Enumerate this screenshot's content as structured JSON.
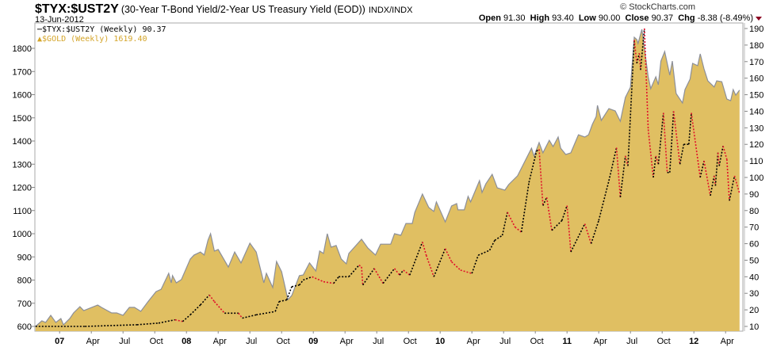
{
  "header": {
    "symbol": "$TYX:$UST2Y",
    "description": "(30-Year T-Bond Yield/2-Year US Treasury Yield (EOD))",
    "exchange": "INDX/INDX",
    "date": "13-Jun-2012",
    "brand": "© StockCharts.com",
    "open_label": "Open",
    "open": "91.30",
    "high_label": "High",
    "high": "93.40",
    "low_label": "Low",
    "low": "90.00",
    "close_label": "Close",
    "close": "90.37",
    "chg_label": "Chg",
    "chg": "-8.38 (-8.49%)"
  },
  "legend": {
    "ratio": "$TYX:$UST2Y (Weekly) 90.37",
    "gold": "$GOLD (Weekly) 1619.40"
  },
  "colors": {
    "gold_fill": "#e0bf62",
    "gold_line": "#8c8f98",
    "ratio_up": "#000000",
    "ratio_down": "#e0102a"
  },
  "chart_data": {
    "type": "line",
    "title": "$TYX:$UST2Y",
    "xlim": [
      2006.805,
      2012.355
    ],
    "left_axis": {
      "label": "$GOLD",
      "ylim": [
        580,
        1900
      ],
      "ticks": [
        600,
        700,
        800,
        900,
        1000,
        1100,
        1200,
        1300,
        1400,
        1500,
        1600,
        1700,
        1800
      ]
    },
    "right_axis": {
      "label": "$TYX:$UST2Y",
      "ylim": [
        5,
        193
      ],
      "ticks": [
        10,
        20,
        30,
        40,
        50,
        60,
        70,
        80,
        90,
        100,
        110,
        120,
        130,
        140,
        150,
        160,
        170,
        180,
        190
      ]
    },
    "x_ticks": [
      {
        "t": 2007.0,
        "label": "07",
        "major": true
      },
      {
        "t": 2007.25,
        "label": "Apr"
      },
      {
        "t": 2007.5,
        "label": "Jul"
      },
      {
        "t": 2007.75,
        "label": "Oct"
      },
      {
        "t": 2008.0,
        "label": "08",
        "major": true
      },
      {
        "t": 2008.25,
        "label": "Apr"
      },
      {
        "t": 2008.5,
        "label": "Jul"
      },
      {
        "t": 2008.75,
        "label": "Oct"
      },
      {
        "t": 2009.0,
        "label": "09",
        "major": true
      },
      {
        "t": 2009.25,
        "label": "Apr"
      },
      {
        "t": 2009.5,
        "label": "Jul"
      },
      {
        "t": 2009.75,
        "label": "Oct"
      },
      {
        "t": 2010.0,
        "label": "10",
        "major": true
      },
      {
        "t": 2010.25,
        "label": "Apr"
      },
      {
        "t": 2010.5,
        "label": "Jul"
      },
      {
        "t": 2010.75,
        "label": "Oct"
      },
      {
        "t": 2011.0,
        "label": "11",
        "major": true
      },
      {
        "t": 2011.25,
        "label": "Apr"
      },
      {
        "t": 2011.5,
        "label": "Jul"
      },
      {
        "t": 2011.75,
        "label": "Oct"
      },
      {
        "t": 2012.0,
        "label": "12",
        "major": true
      },
      {
        "t": 2012.25,
        "label": "Apr"
      }
    ],
    "series": [
      {
        "name": "$GOLD (Weekly)",
        "type": "area",
        "axis": "left",
        "points": [
          [
            2006.81,
            600
          ],
          [
            2006.86,
            624
          ],
          [
            2006.89,
            617
          ],
          [
            2006.93,
            648
          ],
          [
            2006.97,
            617
          ],
          [
            2007.01,
            634
          ],
          [
            2007.03,
            607
          ],
          [
            2007.08,
            634
          ],
          [
            2007.11,
            658
          ],
          [
            2007.16,
            685
          ],
          [
            2007.19,
            668
          ],
          [
            2007.3,
            692
          ],
          [
            2007.33,
            682
          ],
          [
            2007.41,
            658
          ],
          [
            2007.45,
            658
          ],
          [
            2007.5,
            648
          ],
          [
            2007.55,
            682
          ],
          [
            2007.59,
            682
          ],
          [
            2007.64,
            665
          ],
          [
            2007.7,
            709
          ],
          [
            2007.76,
            750
          ],
          [
            2007.8,
            760
          ],
          [
            2007.86,
            829
          ],
          [
            2007.88,
            788
          ],
          [
            2007.89,
            819
          ],
          [
            2007.92,
            788
          ],
          [
            2007.96,
            802
          ],
          [
            2008.03,
            891
          ],
          [
            2008.06,
            908
          ],
          [
            2008.11,
            921
          ],
          [
            2008.14,
            908
          ],
          [
            2008.17,
            973
          ],
          [
            2008.19,
            1000
          ],
          [
            2008.22,
            925
          ],
          [
            2008.25,
            932
          ],
          [
            2008.33,
            856
          ],
          [
            2008.38,
            921
          ],
          [
            2008.43,
            874
          ],
          [
            2008.5,
            959
          ],
          [
            2008.55,
            921
          ],
          [
            2008.61,
            788
          ],
          [
            2008.63,
            829
          ],
          [
            2008.68,
            768
          ],
          [
            2008.71,
            880
          ],
          [
            2008.75,
            836
          ],
          [
            2008.8,
            716
          ],
          [
            2008.83,
            733
          ],
          [
            2008.89,
            819
          ],
          [
            2008.92,
            822
          ],
          [
            2008.97,
            874
          ],
          [
            2009.02,
            839
          ],
          [
            2009.05,
            925
          ],
          [
            2009.08,
            915
          ],
          [
            2009.11,
            1000
          ],
          [
            2009.14,
            942
          ],
          [
            2009.18,
            949
          ],
          [
            2009.22,
            891
          ],
          [
            2009.26,
            870
          ],
          [
            2009.28,
            915
          ],
          [
            2009.38,
            976
          ],
          [
            2009.43,
            938
          ],
          [
            2009.49,
            908
          ],
          [
            2009.53,
            955
          ],
          [
            2009.61,
            955
          ],
          [
            2009.64,
            1000
          ],
          [
            2009.69,
            993
          ],
          [
            2009.73,
            1044
          ],
          [
            2009.78,
            1044
          ],
          [
            2009.8,
            1092
          ],
          [
            2009.86,
            1171
          ],
          [
            2009.91,
            1113
          ],
          [
            2009.95,
            1096
          ],
          [
            2009.97,
            1137
          ],
          [
            2010.04,
            1051
          ],
          [
            2010.09,
            1120
          ],
          [
            2010.13,
            1130
          ],
          [
            2010.14,
            1103
          ],
          [
            2010.19,
            1103
          ],
          [
            2010.22,
            1161
          ],
          [
            2010.24,
            1137
          ],
          [
            2010.31,
            1229
          ],
          [
            2010.33,
            1178
          ],
          [
            2010.36,
            1215
          ],
          [
            2010.41,
            1256
          ],
          [
            2010.45,
            1198
          ],
          [
            2010.51,
            1188
          ],
          [
            2010.54,
            1212
          ],
          [
            2010.61,
            1250
          ],
          [
            2010.72,
            1369
          ],
          [
            2010.74,
            1335
          ],
          [
            2010.78,
            1393
          ],
          [
            2010.81,
            1349
          ],
          [
            2010.86,
            1403
          ],
          [
            2010.89,
            1376
          ],
          [
            2010.93,
            1417
          ],
          [
            2010.95,
            1369
          ],
          [
            2010.99,
            1342
          ],
          [
            2011.03,
            1349
          ],
          [
            2011.09,
            1427
          ],
          [
            2011.14,
            1417
          ],
          [
            2011.17,
            1427
          ],
          [
            2011.2,
            1472
          ],
          [
            2011.23,
            1506
          ],
          [
            2011.24,
            1554
          ],
          [
            2011.27,
            1489
          ],
          [
            2011.33,
            1540
          ],
          [
            2011.38,
            1530
          ],
          [
            2011.42,
            1485
          ],
          [
            2011.46,
            1588
          ],
          [
            2011.5,
            1632
          ],
          [
            2011.53,
            1848
          ],
          [
            2011.55,
            1838
          ],
          [
            2011.56,
            1821
          ],
          [
            2011.59,
            1882
          ],
          [
            2011.64,
            1677
          ],
          [
            2011.66,
            1626
          ],
          [
            2011.7,
            1677
          ],
          [
            2011.72,
            1643
          ],
          [
            2011.74,
            1745
          ],
          [
            2011.77,
            1786
          ],
          [
            2011.81,
            1684
          ],
          [
            2011.83,
            1745
          ],
          [
            2011.86,
            1605
          ],
          [
            2011.91,
            1564
          ],
          [
            2011.93,
            1622
          ],
          [
            2011.97,
            1667
          ],
          [
            2011.99,
            1735
          ],
          [
            2012.03,
            1725
          ],
          [
            2012.05,
            1776
          ],
          [
            2012.08,
            1711
          ],
          [
            2012.11,
            1660
          ],
          [
            2012.16,
            1633
          ],
          [
            2012.18,
            1660
          ],
          [
            2012.22,
            1656
          ],
          [
            2012.26,
            1581
          ],
          [
            2012.29,
            1574
          ],
          [
            2012.31,
            1622
          ],
          [
            2012.33,
            1598
          ],
          [
            2012.36,
            1619.4
          ]
        ]
      },
      {
        "name": "$TYX:$UST2Y (Weekly)",
        "type": "line",
        "axis": "right",
        "points": [
          [
            2006.81,
            10
          ],
          [
            2007.2,
            10
          ],
          [
            2007.61,
            11
          ],
          [
            2007.78,
            12
          ],
          [
            2007.91,
            14
          ],
          [
            2007.97,
            13
          ],
          [
            2008.03,
            17
          ],
          [
            2008.11,
            23
          ],
          [
            2008.18,
            29
          ],
          [
            2008.22,
            25
          ],
          [
            2008.3,
            18
          ],
          [
            2008.41,
            18
          ],
          [
            2008.44,
            15
          ],
          [
            2008.55,
            17
          ],
          [
            2008.7,
            19
          ],
          [
            2008.73,
            25
          ],
          [
            2008.79,
            26
          ],
          [
            2008.83,
            34
          ],
          [
            2008.89,
            35
          ],
          [
            2008.92,
            38
          ],
          [
            2008.99,
            40
          ],
          [
            2009.08,
            37
          ],
          [
            2009.16,
            36
          ],
          [
            2009.2,
            40
          ],
          [
            2009.28,
            40
          ],
          [
            2009.36,
            47
          ],
          [
            2009.38,
            46
          ],
          [
            2009.39,
            35
          ],
          [
            2009.48,
            45
          ],
          [
            2009.55,
            36
          ],
          [
            2009.64,
            45
          ],
          [
            2009.68,
            41
          ],
          [
            2009.71,
            44
          ],
          [
            2009.76,
            41
          ],
          [
            2009.86,
            61
          ],
          [
            2009.89,
            53
          ],
          [
            2009.95,
            40
          ],
          [
            2010.04,
            57
          ],
          [
            2010.09,
            49
          ],
          [
            2010.16,
            44
          ],
          [
            2010.25,
            42
          ],
          [
            2010.3,
            53
          ],
          [
            2010.39,
            56
          ],
          [
            2010.43,
            62
          ],
          [
            2010.49,
            65
          ],
          [
            2010.53,
            79
          ],
          [
            2010.59,
            70
          ],
          [
            2010.64,
            67
          ],
          [
            2010.7,
            97
          ],
          [
            2010.76,
            116
          ],
          [
            2010.78,
            117
          ],
          [
            2010.81,
            83
          ],
          [
            2010.84,
            88
          ],
          [
            2010.88,
            68
          ],
          [
            2010.96,
            74
          ],
          [
            2011.0,
            83
          ],
          [
            2011.03,
            55
          ],
          [
            2011.14,
            72
          ],
          [
            2011.19,
            60
          ],
          [
            2011.25,
            74
          ],
          [
            2011.33,
            98
          ],
          [
            2011.39,
            118
          ],
          [
            2011.42,
            88
          ],
          [
            2011.46,
            113
          ],
          [
            2011.48,
            107
          ],
          [
            2011.53,
            183
          ],
          [
            2011.55,
            169
          ],
          [
            2011.57,
            175
          ],
          [
            2011.58,
            165
          ],
          [
            2011.61,
            190
          ],
          [
            2011.64,
            129
          ],
          [
            2011.68,
            100
          ],
          [
            2011.7,
            113
          ],
          [
            2011.72,
            108
          ],
          [
            2011.76,
            139
          ],
          [
            2011.79,
            103
          ],
          [
            2011.81,
            103
          ],
          [
            2011.84,
            140
          ],
          [
            2011.89,
            108
          ],
          [
            2011.92,
            120
          ],
          [
            2011.96,
            120
          ],
          [
            2011.98,
            139
          ],
          [
            2012.05,
            100
          ],
          [
            2012.08,
            110
          ],
          [
            2012.13,
            89
          ],
          [
            2012.16,
            101
          ],
          [
            2012.17,
            95
          ],
          [
            2012.19,
            115
          ],
          [
            2012.2,
            107
          ],
          [
            2012.23,
            119
          ],
          [
            2012.26,
            111
          ],
          [
            2012.28,
            86
          ],
          [
            2012.32,
            101
          ],
          [
            2012.36,
            90.37
          ]
        ]
      }
    ]
  }
}
